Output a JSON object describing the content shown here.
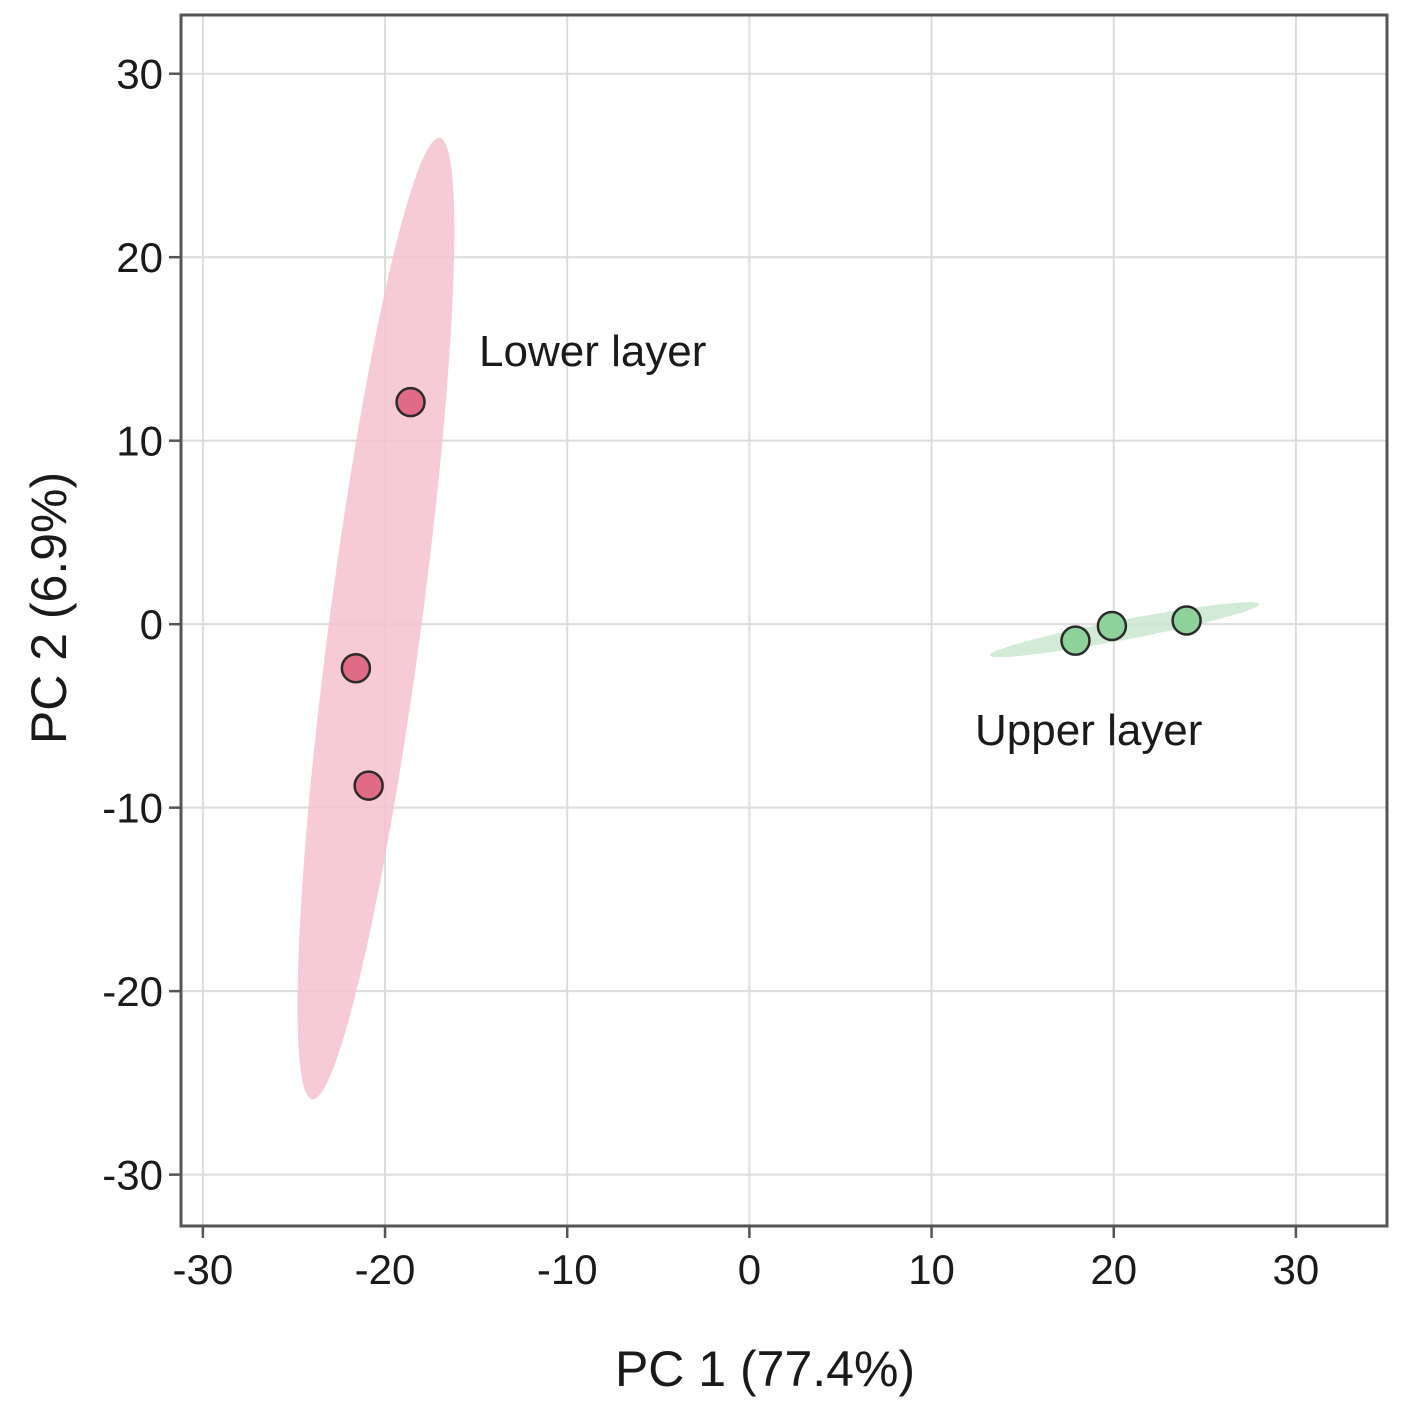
{
  "chart_data": {
    "type": "scatter",
    "title": "",
    "xlabel": "PC 1 (77.4%)",
    "ylabel": "PC 2 (6.9%)",
    "xlim": [
      -31.2,
      35
    ],
    "ylim": [
      -32.8,
      33.2
    ],
    "x_ticks": [
      -30,
      -20,
      -10,
      0,
      10,
      20,
      30
    ],
    "y_ticks": [
      -30,
      -20,
      -10,
      0,
      10,
      20,
      30
    ],
    "x_tick_labels": [
      "-30",
      "-20",
      "-10",
      "0",
      "10",
      "20",
      "30"
    ],
    "y_tick_labels": [
      "-30",
      "-20",
      "-10",
      "0",
      "10",
      "20",
      "30"
    ],
    "grid": true,
    "legend": "none",
    "series": [
      {
        "name": "Lower layer",
        "color": "#e06b86",
        "ellipse_color": "#f4c2cf",
        "points": [
          {
            "x": -18.6,
            "y": 12.1
          },
          {
            "x": -21.6,
            "y": -2.4
          },
          {
            "x": -20.9,
            "y": -8.8
          }
        ],
        "ellipse": {
          "cx": -20.4,
          "cy": 0.3,
          "x_extent": [
            -24,
            -17
          ],
          "y_extent": [
            -25.9,
            26.5
          ]
        }
      },
      {
        "name": "Upper layer",
        "color": "#8fd19b",
        "ellipse_color": "#c9e8cf",
        "points": [
          {
            "x": 17.9,
            "y": -0.9
          },
          {
            "x": 19.9,
            "y": -0.1
          },
          {
            "x": 24.0,
            "y": 0.2
          }
        ],
        "ellipse": {
          "cx": 20.6,
          "cy": -0.3,
          "x_extent": [
            13.2,
            28
          ],
          "y_extent": [
            -1.7,
            1.1
          ]
        }
      }
    ]
  }
}
